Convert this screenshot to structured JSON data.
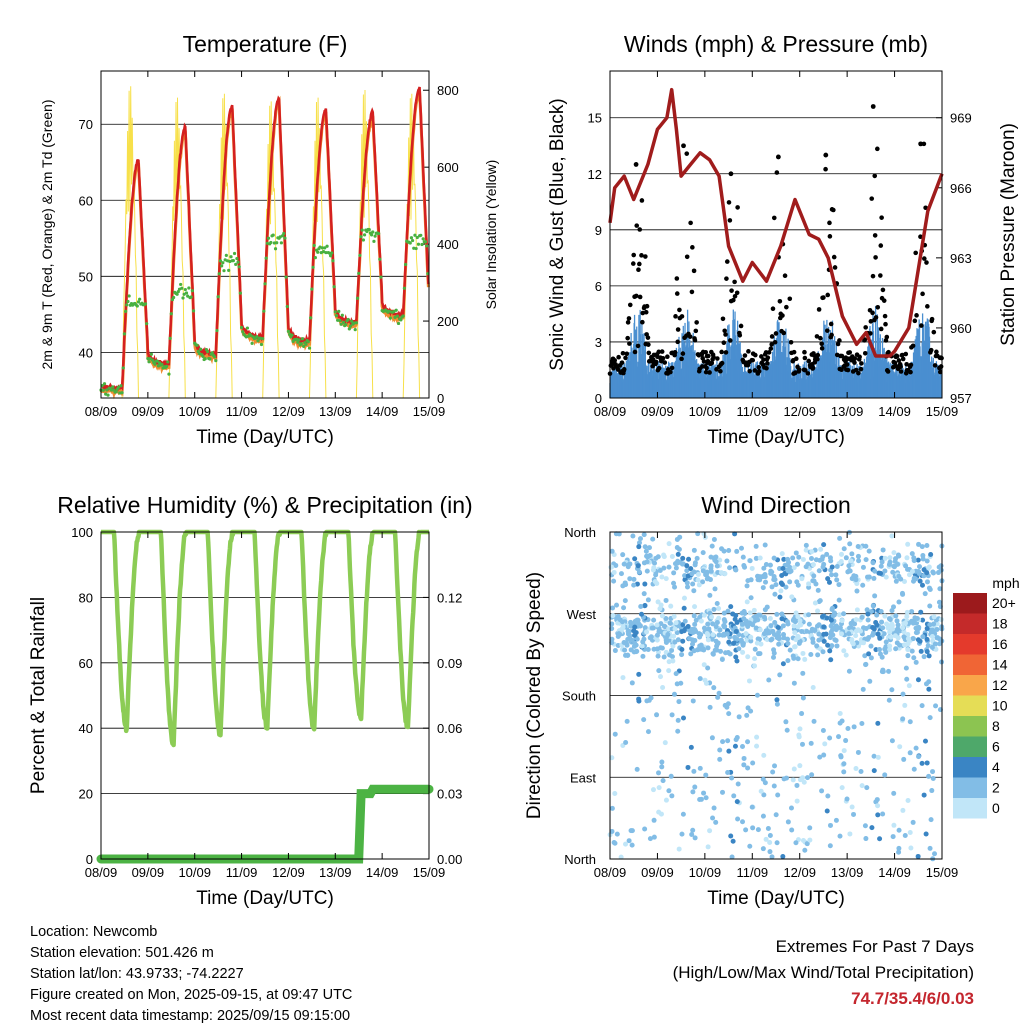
{
  "panels": {
    "temperature": {
      "title": "Temperature (F)",
      "ylabel_left": "2m & 9m T (Red, Orange) & 2m Td (Green)",
      "ylabel_right": "Solar Insolation (Yellow)",
      "xlabel": "Time (Day/UTC)",
      "x_ticks": [
        "08/09",
        "09/09",
        "10/09",
        "11/09",
        "12/09",
        "13/09",
        "14/09",
        "15/09"
      ],
      "y_left_ticks": [
        40,
        50,
        60,
        70
      ],
      "y_right_ticks": [
        0,
        200,
        400,
        600,
        800
      ]
    },
    "winds": {
      "title": "Winds (mph) & Pressure (mb)",
      "ylabel_left": "Sonic Wind & Gust (Blue, Black)",
      "ylabel_right": "Station Pressure (Maroon)",
      "xlabel": "Time (Day/UTC)",
      "x_ticks": [
        "08/09",
        "09/09",
        "10/09",
        "11/09",
        "12/09",
        "13/09",
        "14/09",
        "15/09"
      ],
      "y_left_ticks": [
        0,
        3,
        6,
        9,
        12,
        15
      ],
      "y_right_ticks": [
        957,
        960,
        963,
        966,
        969
      ]
    },
    "humidity": {
      "title": "Relative Humidity (%) & Precipitation (in)",
      "ylabel_left": "Percent & Total Rainfall",
      "xlabel": "Time (Day/UTC)",
      "x_ticks": [
        "08/09",
        "09/09",
        "10/09",
        "11/09",
        "12/09",
        "13/09",
        "14/09",
        "15/09"
      ],
      "y_left_ticks": [
        0,
        20,
        40,
        60,
        80,
        100
      ],
      "y_right_ticks": [
        "0.00",
        "0.03",
        "0.06",
        "0.09",
        "0.12"
      ]
    },
    "direction": {
      "title": "Wind Direction",
      "ylabel_left": "Direction (Colored By Speed)",
      "xlabel": "Time (Day/UTC)",
      "x_ticks": [
        "08/09",
        "09/09",
        "10/09",
        "11/09",
        "12/09",
        "13/09",
        "14/09",
        "15/09"
      ],
      "y_ticks": [
        "North",
        "West",
        "South",
        "East",
        "North"
      ],
      "legend_title": "mph",
      "legend_labels": [
        "20+",
        "18",
        "16",
        "14",
        "12",
        "10",
        "8",
        "6",
        "4",
        "2",
        "0"
      ],
      "legend_colors": [
        "#9c1a1c",
        "#c42a2a",
        "#e43a2c",
        "#f06535",
        "#f9a64a",
        "#e5dd56",
        "#8cc451",
        "#4ea86a",
        "#3a85c4",
        "#82bde6",
        "#c1e6f8"
      ]
    }
  },
  "chart_data": [
    {
      "type": "line",
      "title": "Temperature (F)",
      "x_range": [
        "08/09",
        "15/09"
      ],
      "ylim_left": [
        34,
        77
      ],
      "ylim_right": [
        0,
        850
      ],
      "daily_2m_temp_max": [
        65.2,
        69.6,
        72.4,
        73.3,
        72.0,
        71.5,
        74.7
      ],
      "daily_2m_temp_min": [
        35.4,
        38.5,
        39.8,
        42.0,
        41.5,
        44.0,
        45.0
      ],
      "daily_dewpoint_max": [
        47,
        48,
        52,
        55,
        54,
        56,
        55
      ],
      "daily_solar_max": [
        820,
        790,
        800,
        780,
        790,
        810,
        800
      ],
      "series": [
        {
          "name": "2m T",
          "color": "#d42020"
        },
        {
          "name": "9m T",
          "color": "#f08c30"
        },
        {
          "name": "2m Td",
          "color": "#48b040"
        },
        {
          "name": "Solar Insolation",
          "color": "#f7e04a"
        }
      ]
    },
    {
      "type": "line",
      "title": "Winds (mph) & Pressure (mb)",
      "ylim_left": [
        0,
        17.5
      ],
      "ylim_right": [
        957,
        971
      ],
      "daily_max_gust": [
        12.5,
        13.5,
        12.0,
        12.9,
        13.0,
        15.6,
        13.6
      ],
      "pressure": {
        "x": [
          0,
          0.1,
          0.3,
          0.5,
          0.8,
          1.0,
          1.2,
          1.3,
          1.4,
          1.5,
          1.7,
          1.9,
          2.1,
          2.3,
          2.5,
          2.8,
          3.0,
          3.3,
          3.6,
          3.9,
          4.2,
          4.4,
          4.6,
          4.9,
          5.2,
          5.4,
          5.6,
          5.9,
          6.0,
          6.3,
          6.5,
          6.7,
          7.0
        ],
        "y": [
          964.5,
          966.0,
          966.5,
          965.5,
          967.0,
          968.5,
          969.0,
          970.2,
          968.5,
          966.5,
          967.0,
          967.5,
          967.2,
          966.5,
          963.5,
          962.0,
          962.8,
          962.0,
          963.5,
          965.5,
          964.0,
          963.8,
          963.0,
          960.5,
          959.3,
          959.8,
          958.8,
          958.8,
          959.0,
          960.0,
          962.5,
          965.0,
          966.6
        ]
      },
      "series": [
        {
          "name": "Sonic Wind",
          "color": "#4a8fd0"
        },
        {
          "name": "Gust",
          "color": "#000000"
        },
        {
          "name": "Station Pressure",
          "color": "#a01c1c"
        }
      ]
    },
    {
      "type": "line",
      "title": "Relative Humidity (%) & Precipitation (in)",
      "ylim_left": [
        0,
        100
      ],
      "ylim_right": [
        0.0,
        0.15
      ],
      "daily_rh_min": [
        40,
        35,
        38,
        40,
        40,
        43,
        40
      ],
      "rh_max": 100,
      "precip_total": {
        "x": [
          0,
          5.5,
          5.55,
          5.75,
          5.8,
          7.0
        ],
        "y": [
          0.0,
          0.0,
          0.03,
          0.03,
          0.032,
          0.032
        ]
      },
      "series": [
        {
          "name": "Relative Humidity",
          "color": "#8ccc55"
        },
        {
          "name": "Total Precipitation",
          "color": "#4cb344"
        }
      ]
    },
    {
      "type": "scatter",
      "title": "Wind Direction",
      "y_categories": [
        "North",
        "East",
        "South",
        "West",
        "North"
      ],
      "note_colors": "points colored by speed in mph (0 to 20+)"
    }
  ],
  "footer": {
    "location": "Location: Newcomb",
    "elevation": "Station elevation: 501.426 m",
    "latlon": "Station lat/lon: 43.9733; -74.2227",
    "created": "Figure created on Mon, 2025-09-15, at 09:47 UTC",
    "timestamp": "Most recent data timestamp: 2025/09/15 09:15:00"
  },
  "extremes": {
    "heading": "Extremes For Past 7 Days",
    "subheading": "(High/Low/Max Wind/Total Precipitation)",
    "value": "74.7/35.4/6/0.03"
  }
}
